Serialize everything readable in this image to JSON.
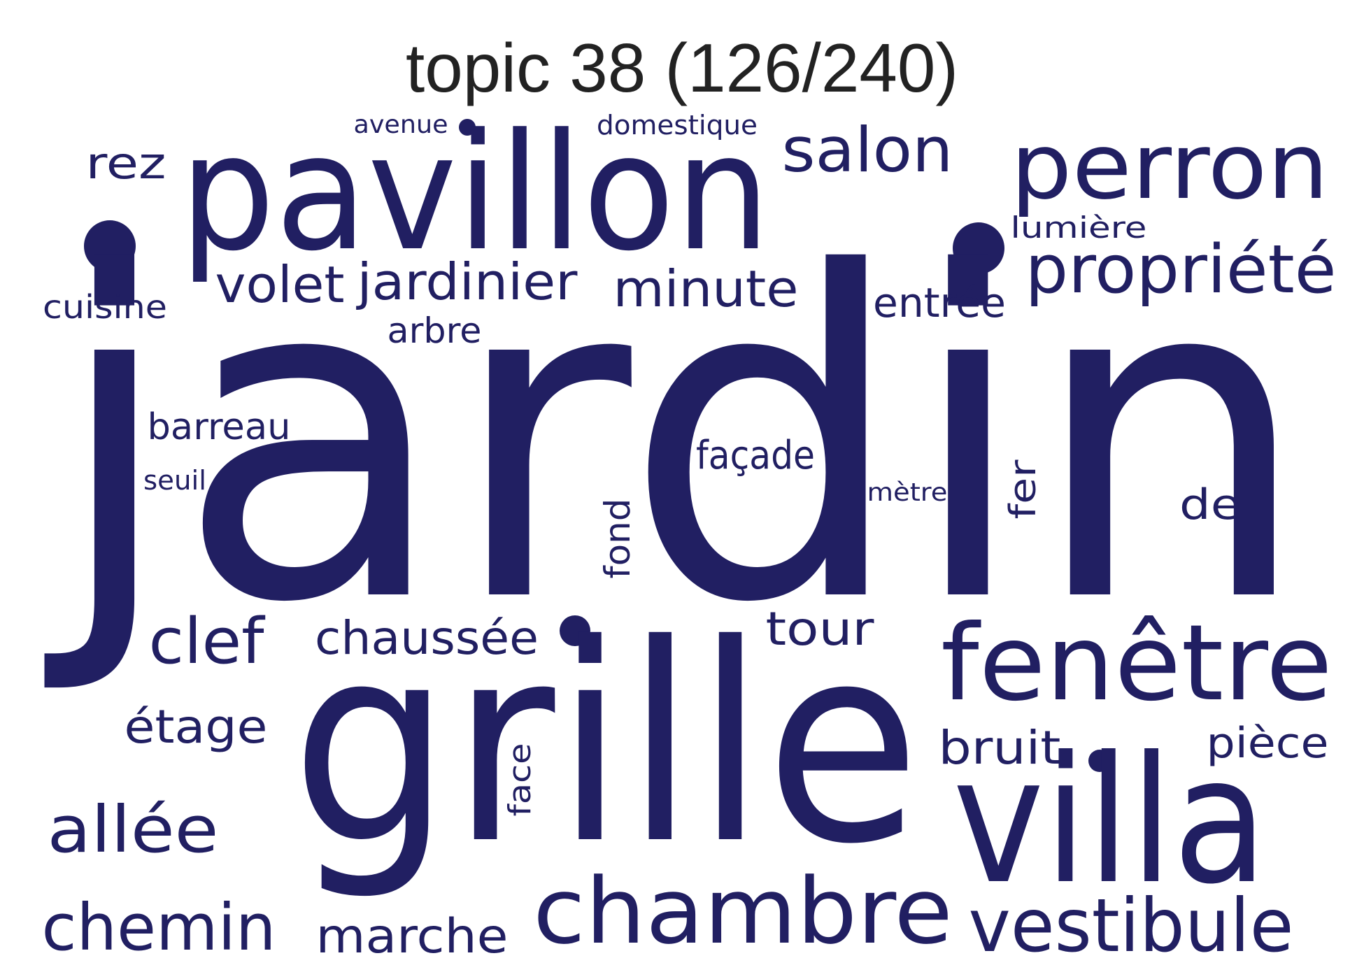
{
  "title": "topic 38 (126/240)",
  "word_color": "#211f62",
  "words": [
    "jardin",
    "grille",
    "pavillon",
    "villa",
    "fenêtre",
    "chambre",
    "perron",
    "propriété",
    "vestibule",
    "salon",
    "chemin",
    "allée",
    "clef",
    "minute",
    "jardinier",
    "volet",
    "chaussée",
    "marche",
    "tour",
    "bruit",
    "étage",
    "rez",
    "entrée",
    "pièce",
    "façade",
    "de",
    "barreau",
    "arbre",
    "cuisine",
    "fer",
    "fond",
    "face",
    "lumière",
    "domestique",
    "avenue",
    "mètre",
    "seuil"
  ]
}
